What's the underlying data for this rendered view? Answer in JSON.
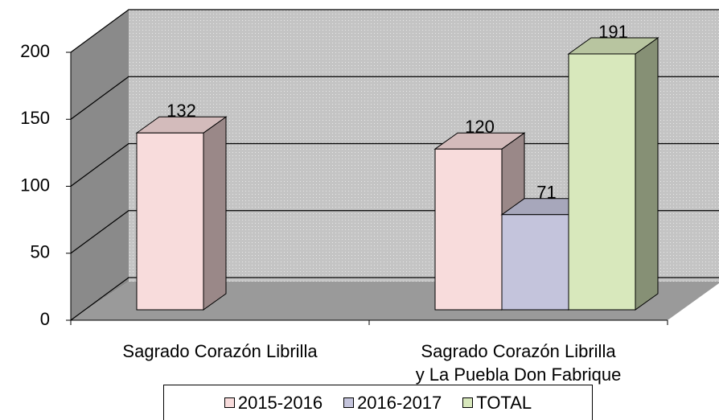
{
  "chart_data": {
    "type": "bar3d",
    "categories": [
      "Sagrado Corazón Librilla",
      "Sagrado Corazón Librilla\ny La Puebla Don Fabrique"
    ],
    "series": [
      {
        "name": "2015-2016",
        "color": "#f8dcdc",
        "values": [
          132,
          120
        ]
      },
      {
        "name": "2016-2017",
        "color": "#c4c4dc",
        "values": [
          null,
          71
        ]
      },
      {
        "name": "TOTAL",
        "color": "#d8e8bc",
        "values": [
          null,
          191
        ]
      }
    ],
    "ylim": [
      0,
      200
    ],
    "yticks": [
      0,
      50,
      100,
      150,
      200
    ],
    "grid": true,
    "legend": "bottom"
  }
}
